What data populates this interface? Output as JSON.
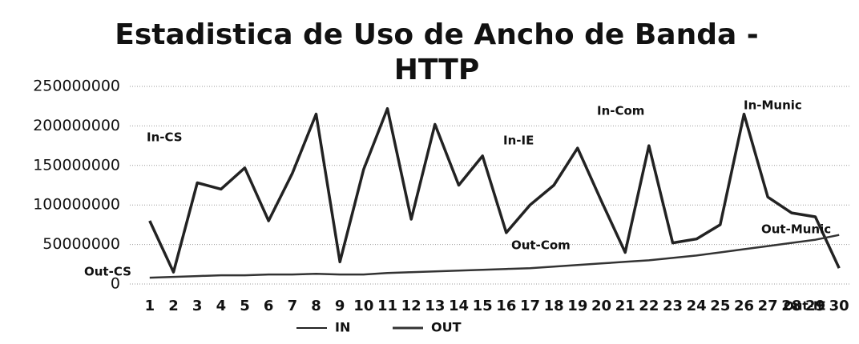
{
  "chart_data": {
    "type": "line",
    "title": "Estadistica de Uso de Ancho de Banda - HTTP",
    "categories": [
      "1",
      "2",
      "3",
      "4",
      "5",
      "6",
      "7",
      "8",
      "9",
      "10",
      "11",
      "12",
      "13",
      "14",
      "15",
      "16",
      "17",
      "18",
      "19",
      "20",
      "21",
      "22",
      "23",
      "24",
      "25",
      "26",
      "27",
      "28",
      "29",
      "30"
    ],
    "series": [
      {
        "name": "IN",
        "color": "#222222",
        "values": [
          80000000,
          15000000,
          128000000,
          120000000,
          147000000,
          80000000,
          140000000,
          215000000,
          28000000,
          145000000,
          222000000,
          82000000,
          202000000,
          125000000,
          162000000,
          65000000,
          100000000,
          125000000,
          172000000,
          105000000,
          40000000,
          175000000,
          52000000,
          57000000,
          75000000,
          215000000,
          110000000,
          90000000,
          85000000,
          20000000
        ]
      },
      {
        "name": "OUT",
        "color": "#333333",
        "values": [
          8000000,
          9000000,
          10000000,
          11000000,
          11000000,
          12000000,
          12000000,
          13000000,
          12000000,
          12000000,
          14000000,
          15000000,
          16000000,
          17000000,
          18000000,
          19000000,
          20000000,
          22000000,
          24000000,
          26000000,
          28000000,
          30000000,
          33000000,
          36000000,
          40000000,
          44000000,
          48000000,
          52000000,
          56000000,
          62000000
        ]
      }
    ],
    "annotations": [
      "In-CS",
      "In-IE",
      "In-Com",
      "In-Munic",
      "Out-CS",
      "Out-Com",
      "Out-Munic",
      "Out-IE"
    ],
    "ylim": [
      0,
      250000000
    ],
    "yticks": [
      0,
      50000000,
      100000000,
      150000000,
      200000000,
      250000000
    ],
    "grid": true
  }
}
